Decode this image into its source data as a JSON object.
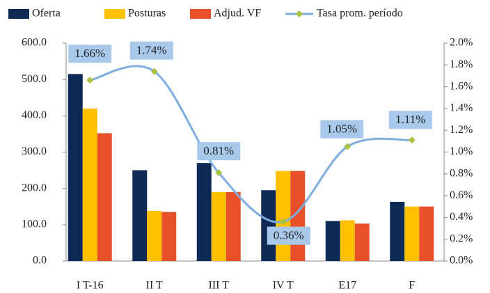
{
  "chart_data": {
    "type": "bar",
    "categories": [
      "I T-16",
      "II T",
      "III T",
      "IV T",
      "E17",
      "F"
    ],
    "series": [
      {
        "name": "Oferta",
        "color": "#0d2a57",
        "values": [
          515,
          250,
          270,
          195,
          110,
          163
        ]
      },
      {
        "name": "Posturas",
        "color": "#ffc000",
        "values": [
          420,
          138,
          190,
          248,
          112,
          150
        ]
      },
      {
        "name": "Adjud.  VF",
        "color": "#e8502a",
        "values": [
          352,
          135,
          190,
          248,
          103,
          150
        ]
      },
      {
        "name": "Tasa prom. período",
        "type": "line",
        "axis": "y2",
        "color": "#7eaee0",
        "marker_color": "#a9c23f",
        "values": [
          1.66,
          1.74,
          0.81,
          0.36,
          1.05,
          1.11
        ],
        "value_labels": [
          "1.66%",
          "1.74%",
          "0.81%",
          "0.36%",
          "1.05%",
          "1.11%"
        ]
      }
    ],
    "ylim": [
      0,
      600
    ],
    "yticks": [
      {
        "value": 0,
        "label": "0.0"
      },
      {
        "value": 100,
        "label": "100.0"
      },
      {
        "value": 200,
        "label": "200.0"
      },
      {
        "value": 300,
        "label": "300.0"
      },
      {
        "value": 400,
        "label": "400.0"
      },
      {
        "value": 500,
        "label": "500.0"
      },
      {
        "value": 600,
        "label": "600.0"
      }
    ],
    "y2lim": [
      0,
      2.0
    ],
    "y2ticks": [
      {
        "value": 0,
        "label": "0.0%"
      },
      {
        "value": 0.2,
        "label": "0.2%"
      },
      {
        "value": 0.4,
        "label": "0.4%"
      },
      {
        "value": 0.6,
        "label": "0.6%"
      },
      {
        "value": 0.8,
        "label": "0.8%"
      },
      {
        "value": 1.0,
        "label": "1.0%"
      },
      {
        "value": 1.2,
        "label": "1.2%"
      },
      {
        "value": 1.4,
        "label": "1.4%"
      },
      {
        "value": 1.6,
        "label": "1.6%"
      },
      {
        "value": 1.8,
        "label": "1.8%"
      },
      {
        "value": 2.0,
        "label": "2.0%"
      }
    ],
    "legend": "top"
  }
}
